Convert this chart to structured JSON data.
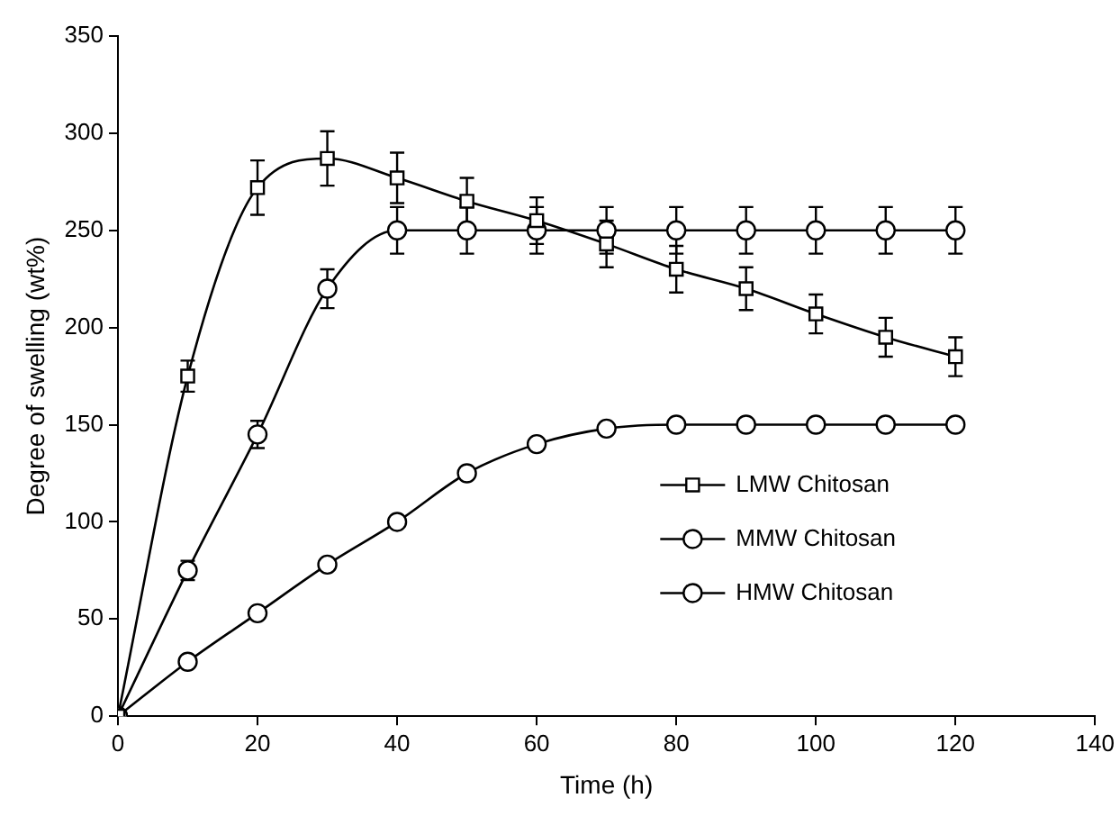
{
  "chart_data": {
    "type": "line",
    "xlabel": "Time (h)",
    "ylabel": "Degree of swelling (wt%)",
    "x": [
      0,
      10,
      20,
      30,
      40,
      50,
      60,
      70,
      80,
      90,
      100,
      110,
      120
    ],
    "xlim": [
      0,
      140
    ],
    "xticks": [
      0,
      20,
      40,
      60,
      80,
      100,
      120,
      140
    ],
    "ylim": [
      0,
      350
    ],
    "yticks": [
      0,
      50,
      100,
      150,
      200,
      250,
      300,
      350
    ],
    "grid": false,
    "legend": "right",
    "line_style": "solid",
    "series": [
      {
        "name": "LMW Chitosan",
        "color": "#000000",
        "marker": "square",
        "values": [
          0,
          175,
          272,
          287,
          277,
          265,
          255,
          243,
          230,
          220,
          207,
          195,
          185
        ],
        "errors": [
          null,
          8,
          14,
          14,
          13,
          12,
          12,
          12,
          12,
          11,
          10,
          10,
          10
        ]
      },
      {
        "name": "MMW Chitosan",
        "color": "#000000",
        "marker": "circle",
        "values": [
          0,
          75,
          145,
          220,
          250,
          250,
          250,
          250,
          250,
          250,
          250,
          250,
          250
        ],
        "errors": [
          null,
          5,
          7,
          10,
          12,
          12,
          12,
          12,
          12,
          12,
          12,
          12,
          12
        ]
      },
      {
        "name": "HMW Chitosan",
        "color": "#000000",
        "marker": "circle",
        "values": [
          0,
          28,
          53,
          78,
          100,
          125,
          140,
          148,
          150,
          150,
          150,
          150,
          150
        ]
      }
    ]
  }
}
